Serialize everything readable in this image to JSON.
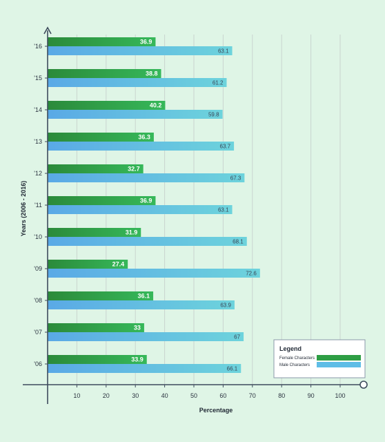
{
  "chart_data": {
    "type": "bar",
    "orientation": "horizontal",
    "categories": [
      "'06",
      "'07",
      "'08",
      "'09",
      "'10",
      "'11",
      "'12",
      "'13",
      "'14",
      "'15",
      "'16"
    ],
    "series": [
      {
        "name": "Female Characters",
        "values": [
          33.9,
          33,
          36.1,
          27.4,
          31.9,
          36.9,
          32.7,
          36.3,
          40.2,
          38.8,
          36.9
        ],
        "value_labels": [
          "33.9",
          "33",
          "36.1",
          "27.4",
          "31.9",
          "36.9",
          "32.7",
          "36.3",
          "40.2",
          "38.8",
          "36.9"
        ],
        "color": "#2e9e44"
      },
      {
        "name": "Male Characters",
        "values": [
          66.1,
          67,
          63.9,
          72.6,
          68.1,
          63.1,
          67.3,
          63.7,
          59.8,
          61.2,
          63.1
        ],
        "value_labels": [
          "66.1",
          "67",
          "63.9",
          "72.6",
          "68.1",
          "63.1",
          "67.3",
          "63.7",
          "59.8",
          "61.2",
          "63.1"
        ],
        "color": "#5fbde6"
      }
    ],
    "xlabel": "Percentage",
    "ylabel": "Years (2006 - 2016)",
    "xlim": [
      0,
      110
    ],
    "xticks": [
      10,
      20,
      30,
      40,
      50,
      60,
      70,
      80,
      90,
      100
    ],
    "xtick_labels": [
      "10",
      "20",
      "30",
      "40",
      "50",
      "60",
      "70",
      "80",
      "90",
      "100"
    ],
    "grid": "vertical",
    "legend": {
      "title": "Legend",
      "placement": "bottom-right",
      "items": [
        "Female Characters",
        "Male Characters"
      ]
    }
  }
}
